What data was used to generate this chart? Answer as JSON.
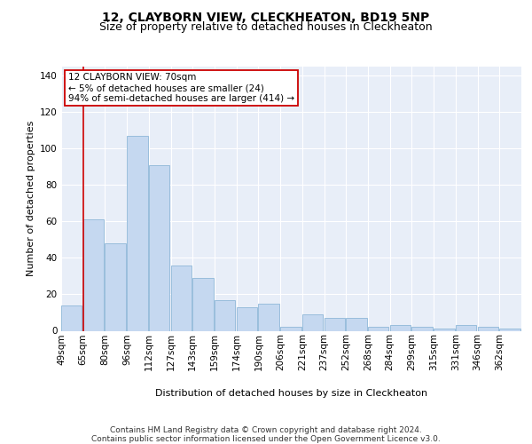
{
  "title_line1": "12, CLAYBORN VIEW, CLECKHEATON, BD19 5NP",
  "title_line2": "Size of property relative to detached houses in Cleckheaton",
  "xlabel": "Distribution of detached houses by size in Cleckheaton",
  "ylabel": "Number of detached properties",
  "bar_color": "#c5d8f0",
  "bar_edge_color": "#8fb8d8",
  "background_color": "#ffffff",
  "plot_bg_color": "#e8eef8",
  "grid_color": "#ffffff",
  "annotation_box_color": "#cc0000",
  "annotation_line_color": "#cc0000",
  "bin_labels": [
    "49sqm",
    "65sqm",
    "80sqm",
    "96sqm",
    "112sqm",
    "127sqm",
    "143sqm",
    "159sqm",
    "174sqm",
    "190sqm",
    "206sqm",
    "221sqm",
    "237sqm",
    "252sqm",
    "268sqm",
    "284sqm",
    "299sqm",
    "315sqm",
    "331sqm",
    "346sqm",
    "362sqm"
  ],
  "values": [
    14,
    61,
    48,
    107,
    91,
    36,
    29,
    17,
    13,
    15,
    2,
    9,
    7,
    7,
    2,
    3,
    2,
    1,
    3,
    2,
    1
  ],
  "property_line_bin": 1,
  "annotation_text": "12 CLAYBORN VIEW: 70sqm\n← 5% of detached houses are smaller (24)\n94% of semi-detached houses are larger (414) →",
  "ylim": [
    0,
    145
  ],
  "yticks": [
    0,
    20,
    40,
    60,
    80,
    100,
    120,
    140
  ],
  "footnote": "Contains HM Land Registry data © Crown copyright and database right 2024.\nContains public sector information licensed under the Open Government Licence v3.0.",
  "title_fontsize": 10,
  "subtitle_fontsize": 9,
  "axis_label_fontsize": 8,
  "tick_fontsize": 7.5,
  "annotation_fontsize": 7.5,
  "footnote_fontsize": 6.5
}
